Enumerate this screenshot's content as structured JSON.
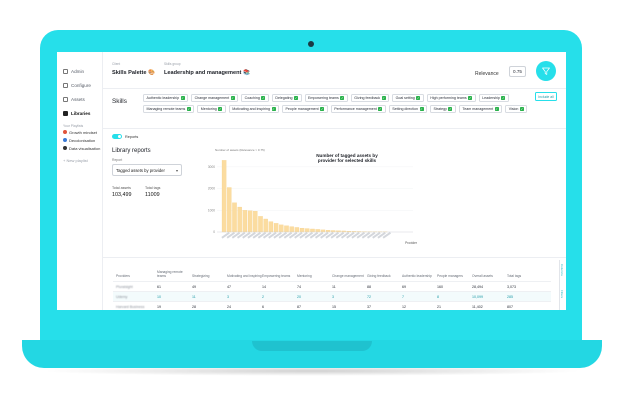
{
  "sidebar": {
    "items": [
      {
        "label": "Admin",
        "icon": "user-icon",
        "active": false
      },
      {
        "label": "Configure",
        "icon": "gear-icon",
        "active": false
      },
      {
        "label": "Assets",
        "icon": "document-icon",
        "active": false
      },
      {
        "label": "Libraries",
        "icon": "books-icon",
        "active": true
      }
    ],
    "section_label": "Your Playlists",
    "playlists": [
      {
        "label": "Growth mindset",
        "color": "#e0533a"
      },
      {
        "label": "Decolonisation",
        "color": "#3a7ad6"
      },
      {
        "label": "Data visualisation",
        "color": "#333333"
      }
    ],
    "new_playlist": "+ New playlist"
  },
  "header": {
    "client_label": "Client",
    "client_value": "Skills Palette 🎨",
    "skills_group_label": "Skills group",
    "skills_group_value": "Leadership and management 📚",
    "relevance_label": "Relevance",
    "relevance_value": "0.75"
  },
  "skills": {
    "title": "Skills",
    "include_all": "Include all",
    "chips": [
      "Authentic leadership",
      "Change management",
      "Coaching",
      "Delegating",
      "Empowering teams",
      "Giving feedback",
      "Goal setting",
      "High performing teams",
      "Leadership",
      "Managing remote teams",
      "Mentoring",
      "Motivating and inspiring",
      "People management",
      "Performance management",
      "Setting direction",
      "Strategy",
      "Team management",
      "Vision"
    ]
  },
  "reports_toggle": {
    "label": "Reports",
    "on": true
  },
  "library_reports": {
    "title": "Library reports",
    "report_label": "Report",
    "report_value": "Tagged assets by provider",
    "total_assets_label": "Total assets",
    "total_assets_value": "103,499",
    "total_tags_label": "Total tags",
    "total_tags_value": "11009"
  },
  "chart_data": {
    "type": "bar",
    "title": "Number of tagged assets by provider for selected skills",
    "ylabel": "Number of assets (Relevance > 0.75)",
    "xlabel": "Provider",
    "yticks": [
      0,
      1000,
      2000,
      3000
    ],
    "ylim": [
      0,
      3500
    ],
    "values": [
      3300,
      2050,
      1350,
      1150,
      1000,
      980,
      960,
      720,
      600,
      480,
      400,
      330,
      290,
      250,
      210,
      180,
      160,
      140,
      120,
      100,
      85,
      70,
      60,
      50,
      40,
      32,
      25,
      20,
      15,
      10,
      8,
      5
    ],
    "bar_color": "#fbdca0"
  },
  "table": {
    "headers": [
      "Providers",
      "Managing remote teams",
      "Strategizing",
      "Motivating and inspiring",
      "Empowering teams",
      "Mentoring",
      "Change management",
      "Giving feedback",
      "Authentic leadership",
      "People managers",
      "Overall assets",
      "Total tags"
    ],
    "rows": [
      {
        "cells": [
          "Pluralsight",
          "61",
          "49",
          "47",
          "14",
          "74",
          "11",
          "88",
          "69",
          "160",
          "28,494",
          "3,073"
        ],
        "highlight": false
      },
      {
        "cells": [
          "Udemy",
          "10",
          "11",
          "3",
          "2",
          "20",
          "3",
          "72",
          "7",
          "8",
          "10,099",
          "285"
        ],
        "highlight": true
      },
      {
        "cells": [
          "Harvard Business",
          "19",
          "28",
          "24",
          "6",
          "87",
          "15",
          "37",
          "12",
          "21",
          "11,402",
          "807"
        ],
        "highlight": false
      }
    ],
    "side_labels": [
      "Columns",
      "Filters"
    ]
  }
}
